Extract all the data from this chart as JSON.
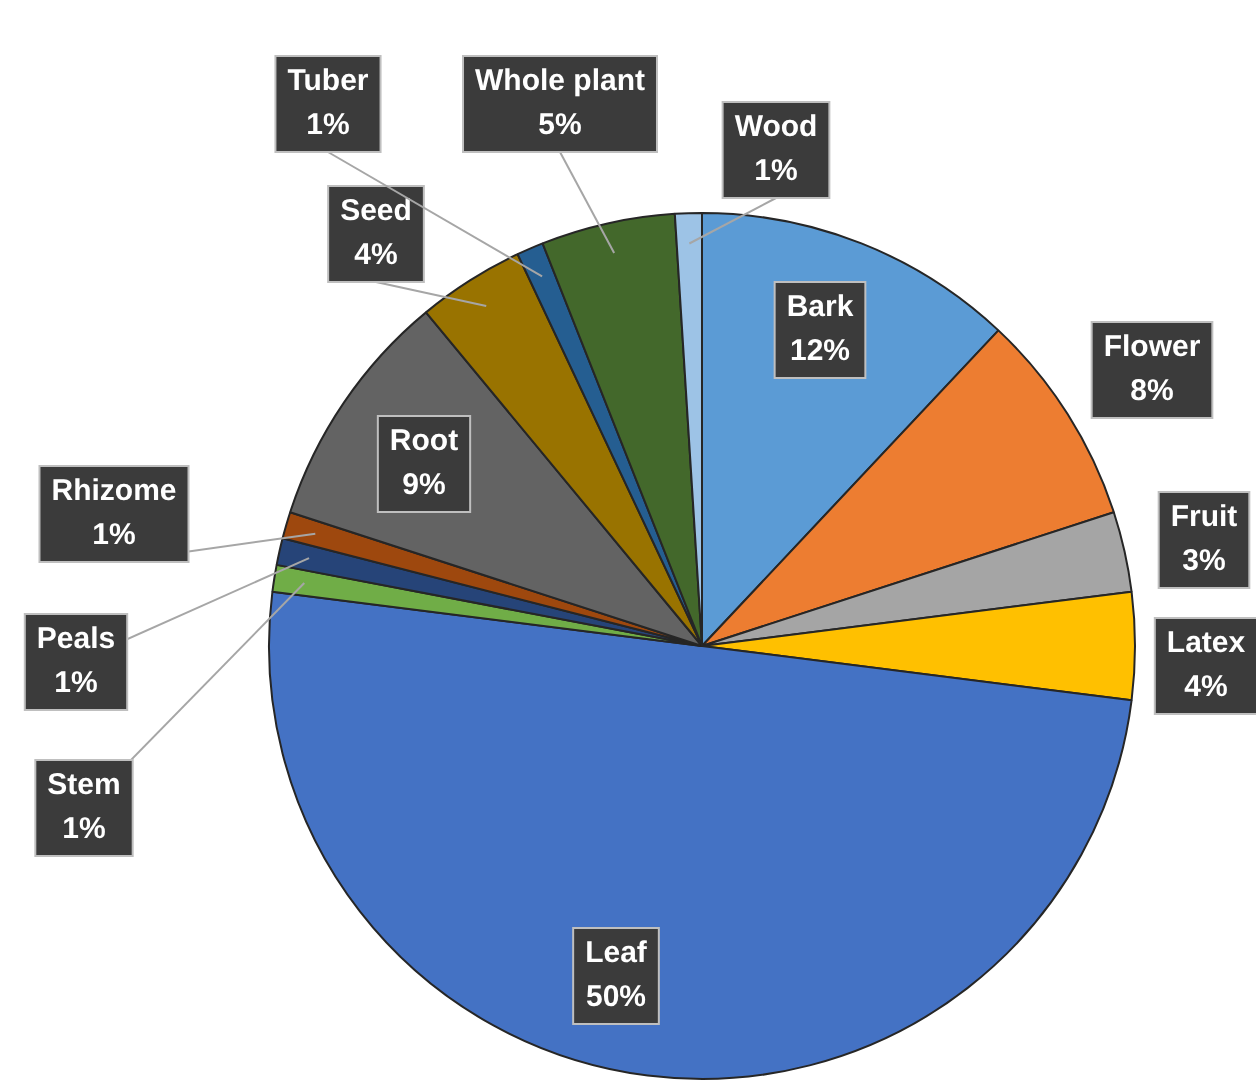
{
  "chart_data": {
    "type": "pie",
    "categories": [
      "Bark",
      "Flower",
      "Fruit",
      "Latex",
      "Leaf",
      "Stem",
      "Peals",
      "Rhizome",
      "Root",
      "Seed",
      "Tuber",
      "Whole plant",
      "Wood"
    ],
    "values": [
      12,
      8,
      3,
      4,
      50,
      1,
      1,
      1,
      9,
      4,
      1,
      5,
      1
    ],
    "colors": [
      "#5b9bd5",
      "#ed7d31",
      "#a5a5a5",
      "#ffc000",
      "#4472c4",
      "#70ad47",
      "#264478",
      "#9e480e",
      "#636363",
      "#997300",
      "#255e91",
      "#43682b",
      "#9dc3e6"
    ],
    "value_labels": [
      "12%",
      "8%",
      "3%",
      "4%",
      "50%",
      "1%",
      "1%",
      "1%",
      "9%",
      "4%",
      "1%",
      "5%",
      "1%"
    ],
    "legend": false
  }
}
